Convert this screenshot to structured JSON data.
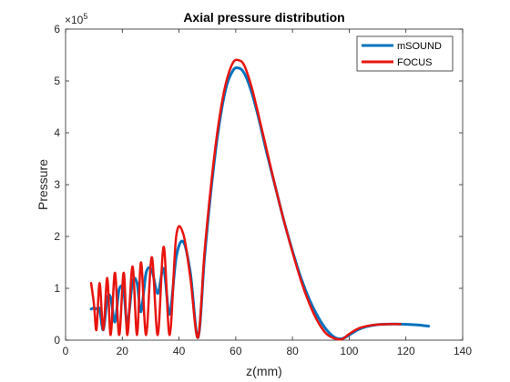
{
  "chart_data": {
    "type": "line",
    "title": "Axial pressure distribution",
    "xlabel": "z(mm)",
    "ylabel": "Pressure",
    "y_exponent_label": "×10",
    "y_exponent_power": "5",
    "xlim": [
      0,
      140
    ],
    "ylim": [
      0,
      6
    ],
    "xticks": [
      0,
      20,
      40,
      60,
      80,
      100,
      120,
      140
    ],
    "yticks": [
      0,
      1,
      2,
      3,
      4,
      5,
      6
    ],
    "grid": false,
    "legend_position": "top-right",
    "series": [
      {
        "name": "mSOUND",
        "color": "#0072BD",
        "x": [
          9,
          10,
          10.9,
          12,
          13.3,
          14.7,
          15.9,
          17.4,
          18.9,
          20.5,
          21.8,
          23.6,
          25.2,
          26.6,
          28.4,
          30.4,
          32.5,
          34.6,
          36.7,
          39,
          41.5,
          44,
          46.7,
          49,
          51.5,
          54,
          56.5,
          59,
          61,
          63,
          65.5,
          68,
          71,
          74,
          77,
          80,
          83,
          86,
          89,
          92,
          95,
          97.5,
          100,
          103,
          106,
          110,
          114,
          118,
          122,
          125,
          128
        ],
        "y": [
          0.6,
          0.62,
          0.6,
          0.6,
          0.2,
          0.8,
          0.82,
          0.35,
          0.98,
          0.95,
          0.3,
          1.12,
          1.1,
          0.55,
          1.3,
          1.35,
          0.9,
          1.38,
          0.5,
          1.6,
          1.9,
          1.3,
          0.05,
          1.6,
          3.0,
          4.1,
          4.85,
          5.2,
          5.25,
          5.15,
          4.8,
          4.3,
          3.6,
          2.95,
          2.3,
          1.72,
          1.2,
          0.78,
          0.45,
          0.2,
          0.05,
          0.03,
          0.1,
          0.2,
          0.26,
          0.3,
          0.31,
          0.31,
          0.3,
          0.29,
          0.27
        ]
      },
      {
        "name": "FOCUS",
        "color": "#E8140E",
        "x": [
          9,
          10,
          10.9,
          12,
          13.3,
          14.7,
          15.9,
          17.4,
          18.9,
          20.5,
          21.8,
          23.6,
          25.2,
          26.6,
          28.4,
          30.4,
          32.5,
          34.6,
          36.7,
          39,
          41.5,
          44,
          46.7,
          49,
          51.5,
          54,
          56.5,
          59,
          61,
          63,
          65.5,
          68,
          71,
          74,
          77,
          80,
          83,
          86,
          89,
          92,
          95,
          97.5,
          100,
          103,
          106,
          110,
          114,
          118
        ],
        "y": [
          1.1,
          0.7,
          0.2,
          1.1,
          0.2,
          1.2,
          0.1,
          1.3,
          0.1,
          1.3,
          0.1,
          1.42,
          0.1,
          1.5,
          0.1,
          1.6,
          0.1,
          1.8,
          0.1,
          2.0,
          2.05,
          1.2,
          0.05,
          1.7,
          3.1,
          4.2,
          4.95,
          5.35,
          5.4,
          5.3,
          4.9,
          4.35,
          3.65,
          2.95,
          2.3,
          1.7,
          1.15,
          0.7,
          0.35,
          0.12,
          0.03,
          0.02,
          0.12,
          0.22,
          0.27,
          0.3,
          0.31,
          0.31
        ]
      }
    ]
  }
}
